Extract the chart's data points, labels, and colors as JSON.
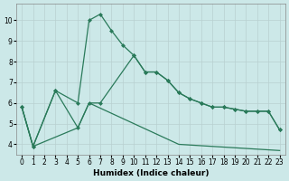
{
  "xlabel": "Humidex (Indice chaleur)",
  "color": "#2a7a5a",
  "bg_color": "#cce8e8",
  "grid_color": "#b8d0d0",
  "ylim": [
    3.5,
    10.8
  ],
  "xlim": [
    -0.5,
    23.5
  ],
  "yticks": [
    4,
    5,
    6,
    7,
    8,
    9,
    10
  ],
  "xticks": [
    0,
    1,
    2,
    3,
    4,
    5,
    6,
    7,
    8,
    9,
    10,
    11,
    12,
    13,
    14,
    15,
    16,
    17,
    18,
    19,
    20,
    21,
    22,
    23
  ],
  "curve1_x": [
    0,
    1,
    3,
    5,
    6,
    7,
    8,
    9,
    10,
    11,
    12,
    13,
    14,
    15,
    16,
    17,
    18,
    19,
    20,
    21,
    22,
    23
  ],
  "curve1_y": [
    5.8,
    3.9,
    6.6,
    6.0,
    10.0,
    10.3,
    9.5,
    8.8,
    8.3,
    7.5,
    7.5,
    7.1,
    6.5,
    6.2,
    6.0,
    5.8,
    5.8,
    5.7,
    5.6,
    5.6,
    5.6,
    4.7
  ],
  "curve2_x": [
    0,
    1,
    3,
    5,
    6,
    7,
    10,
    11,
    12,
    13,
    14,
    15,
    16,
    17,
    18,
    19,
    20,
    21,
    22,
    23
  ],
  "curve2_y": [
    5.8,
    3.9,
    6.6,
    4.8,
    6.0,
    6.0,
    8.3,
    7.5,
    7.5,
    7.1,
    6.5,
    6.2,
    6.0,
    5.8,
    5.8,
    5.7,
    5.6,
    5.6,
    5.6,
    4.7
  ],
  "curve3_x": [
    0,
    1,
    5,
    6,
    14,
    23
  ],
  "curve3_y": [
    5.8,
    3.9,
    4.8,
    6.0,
    4.0,
    3.7
  ]
}
